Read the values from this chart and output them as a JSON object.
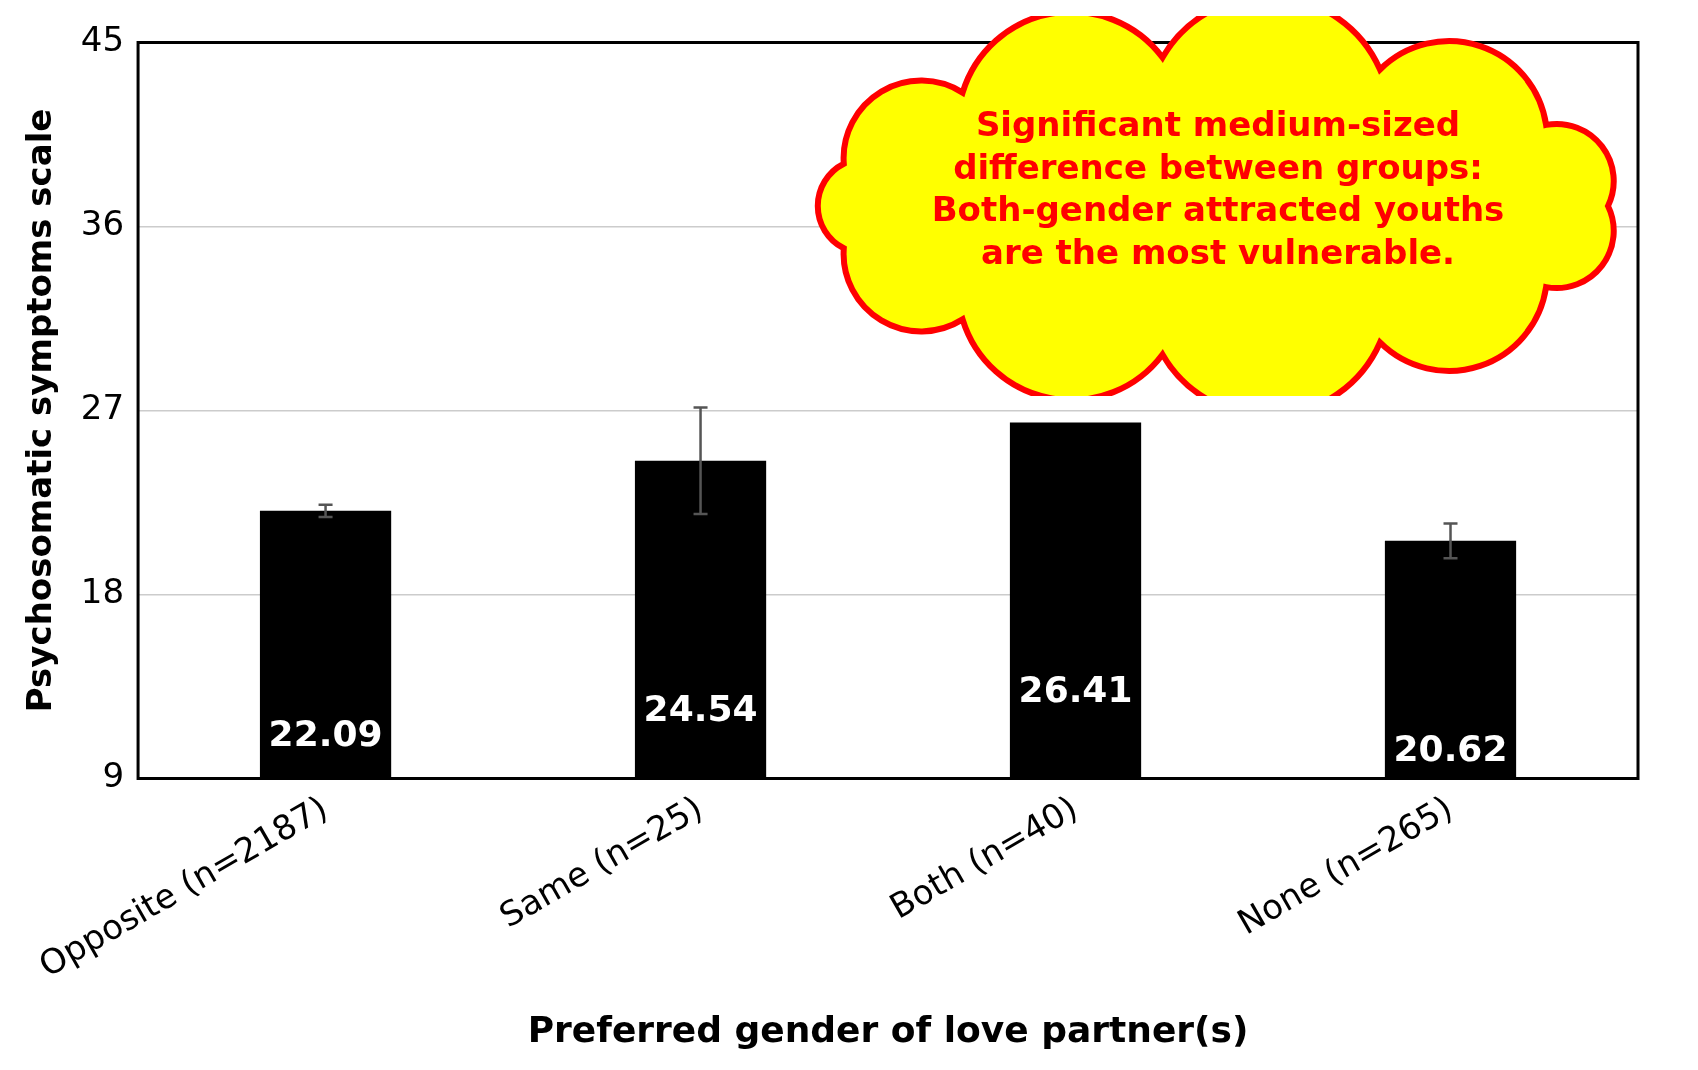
{
  "chart_data": {
    "type": "bar",
    "xlabel": "Preferred gender of love partner(s)",
    "ylabel": "Psychosomatic symptoms scale",
    "categories": [
      "Opposite (n=2187)",
      "Same (n=25)",
      "Both (n=40)",
      "None (n=265)"
    ],
    "values": [
      22.09,
      24.54,
      26.41,
      20.62
    ],
    "errors": [
      0.3,
      2.6,
      null,
      0.85
    ],
    "color": "#000000",
    "data_labels": true,
    "ylim": [
      9,
      45
    ],
    "yticks": [
      9,
      18,
      27,
      36,
      45
    ],
    "grid": "y",
    "legend": false,
    "annotations": [
      "Significant medium-sized difference between groups: Both-gender attracted youths are the most vulnerable."
    ]
  }
}
